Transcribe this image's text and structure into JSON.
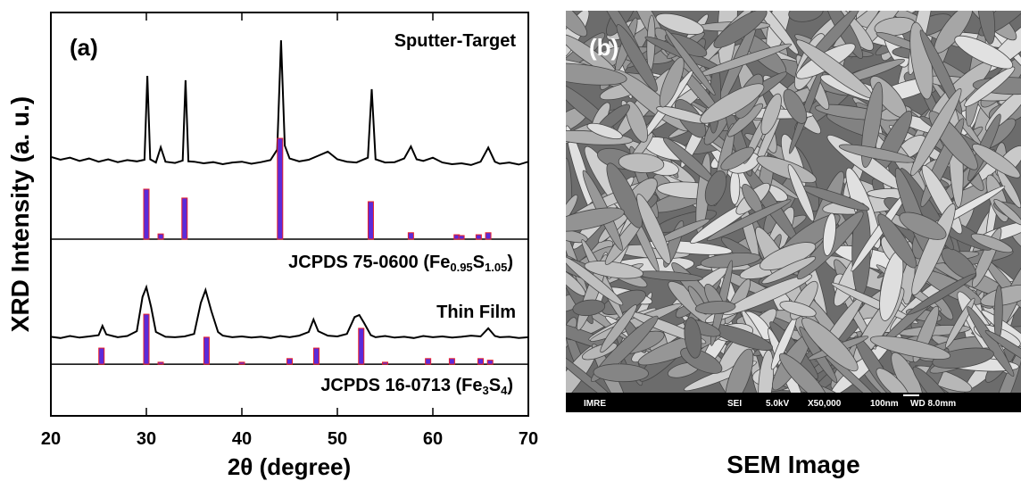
{
  "chart_data": {
    "type": "line",
    "panel_label": "(a)",
    "ylabel": "XRD Intensity (a. u.)",
    "xlabel": "2θ (degree)",
    "xlim": [
      20,
      70
    ],
    "xticks": [
      20,
      30,
      40,
      50,
      60,
      70
    ],
    "ylim": [
      0,
      100
    ],
    "series": [
      {
        "name": [
          "Sputter-Target"
        ],
        "type": "line",
        "color": "#000000",
        "x": [
          20,
          21,
          22,
          23,
          24,
          25,
          26,
          27,
          28,
          29,
          29.8,
          30.1,
          30.4,
          31,
          31.5,
          32,
          33,
          33.8,
          34.1,
          34.4,
          35,
          36,
          37,
          38,
          39,
          40,
          41,
          42,
          43,
          43.7,
          44.1,
          44.5,
          45,
          46,
          47,
          48,
          49,
          50,
          51,
          52,
          53.2,
          53.6,
          54,
          55,
          56,
          57,
          57.7,
          58.3,
          59,
          60,
          61,
          62,
          63,
          64,
          65,
          65.8,
          66.5,
          67,
          68,
          69,
          70
        ],
        "values": [
          64.2,
          63.5,
          64.0,
          63.2,
          63.8,
          63.0,
          63.6,
          62.9,
          63.4,
          63.1,
          63.5,
          84.3,
          63.6,
          62.8,
          66.6,
          63.0,
          62.7,
          63.3,
          83.2,
          63.1,
          63.0,
          62.6,
          62.9,
          62.4,
          62.8,
          63.0,
          62.5,
          62.9,
          63.4,
          66.0,
          93.1,
          67.0,
          63.8,
          63.1,
          63.5,
          64.5,
          65.5,
          63.6,
          63.0,
          62.8,
          64.0,
          81.0,
          63.6,
          62.8,
          62.9,
          63.8,
          66.8,
          63.6,
          63.2,
          64.0,
          62.8,
          62.4,
          62.6,
          62.2,
          63.0,
          66.5,
          63.0,
          62.5,
          62.8,
          62.3,
          63.0
        ]
      },
      {
        "name": [
          "JCPDS 75-0600 (Fe",
          "0.95",
          "S",
          "1.05",
          ")"
        ],
        "type": "bar",
        "color": "#5b2bd9",
        "edgecolor": "#e8202c",
        "baseline": 43.8,
        "x": [
          30,
          31.5,
          34,
          44,
          53.5,
          57.7,
          62.5,
          63,
          64.8,
          65.8
        ],
        "values": [
          56.2,
          45.1,
          54,
          68.8,
          53.1,
          45.4,
          44.9,
          44.7,
          44.9,
          45.4
        ]
      },
      {
        "name": [
          "Thin Film"
        ],
        "type": "line",
        "color": "#000000",
        "x": [
          20,
          21,
          22,
          23,
          24,
          25,
          25.4,
          25.8,
          27,
          28,
          29,
          29.6,
          30,
          30.5,
          31,
          32,
          33,
          34,
          35,
          35.7,
          36.2,
          36.8,
          37.5,
          38,
          39,
          40,
          41,
          42,
          43,
          44,
          45,
          46,
          47,
          47.5,
          48,
          49,
          50,
          51,
          51.8,
          52.3,
          52.8,
          53.5,
          54,
          55,
          56,
          57,
          58,
          59,
          60,
          61,
          62,
          63,
          64,
          65,
          65.8,
          66.5,
          67,
          68,
          69,
          70
        ],
        "values": [
          19.6,
          19.3,
          19.8,
          19.4,
          19.7,
          20.0,
          22.3,
          20.2,
          19.5,
          19.8,
          21.0,
          29.5,
          31.9,
          27.0,
          20.8,
          19.6,
          19.5,
          19.7,
          20.3,
          28.0,
          31.2,
          26.0,
          20.8,
          19.9,
          19.5,
          19.7,
          19.4,
          19.6,
          19.3,
          19.8,
          19.5,
          19.9,
          20.8,
          23.9,
          21.0,
          19.9,
          19.7,
          20.3,
          24.5,
          25.0,
          23.0,
          20.0,
          19.5,
          19.8,
          19.4,
          19.6,
          19.3,
          19.8,
          19.5,
          19.7,
          19.4,
          19.6,
          19.9,
          19.7,
          21.7,
          19.8,
          19.5,
          19.6,
          19.3,
          19.5
        ]
      },
      {
        "name": [
          "JCPDS 16-0713 (Fe",
          "3",
          "S",
          "4",
          ")"
        ],
        "type": "bar",
        "color": "#5b2bd9",
        "edgecolor": "#e8202c",
        "baseline": 12.8,
        "x": [
          25.3,
          30,
          31.5,
          36.3,
          40,
          45,
          47.8,
          52.5,
          55,
          59.5,
          62,
          65,
          66
        ],
        "values": [
          16.8,
          25.2,
          13.3,
          19.5,
          13.3,
          14.2,
          16.8,
          21.7,
          13.3,
          14.2,
          14.2,
          14.2,
          13.8
        ]
      }
    ]
  },
  "image": {
    "label": "(b)",
    "caption": "SEM Image",
    "info": [
      "IMRE",
      "SEI",
      "5.0kV",
      "X50,000",
      "100nm",
      "WD 8.0mm"
    ]
  }
}
